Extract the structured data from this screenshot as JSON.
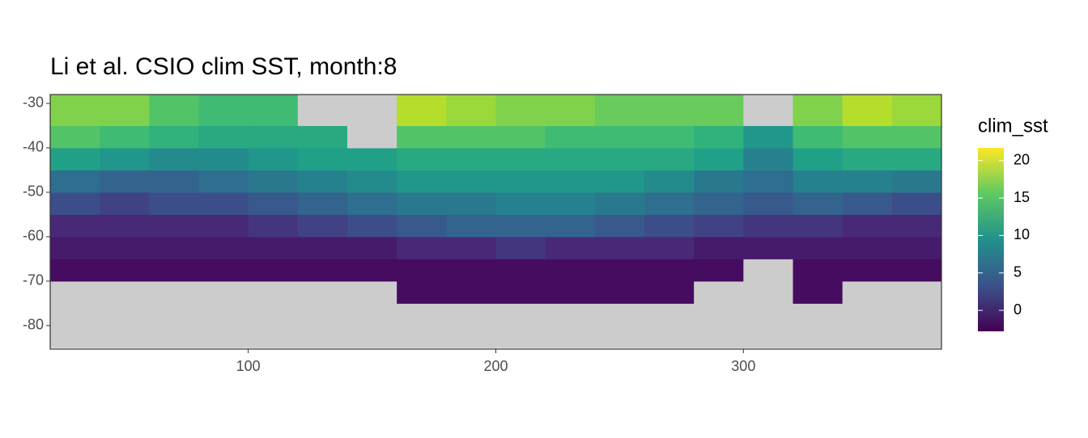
{
  "chart_data": {
    "type": "heatmap",
    "title": "Li et al. CSIO clim SST, month:8",
    "x_bins": [
      20,
      40,
      60,
      80,
      100,
      120,
      140,
      160,
      180,
      200,
      220,
      240,
      260,
      280,
      300,
      320,
      340,
      360,
      380
    ],
    "y_bins": [
      -85,
      -80,
      -75,
      -70,
      -65,
      -60,
      -55,
      -50,
      -45,
      -40,
      -35,
      -28
    ],
    "values": [
      [
        null,
        null,
        null,
        null,
        null,
        null,
        null,
        null,
        null,
        null,
        null,
        null,
        null,
        null,
        null,
        null,
        null,
        null
      ],
      [
        null,
        null,
        null,
        null,
        null,
        null,
        null,
        null,
        null,
        null,
        null,
        null,
        null,
        null,
        null,
        null,
        null,
        null
      ],
      [
        null,
        null,
        null,
        null,
        null,
        null,
        null,
        -2,
        -2,
        -2,
        -2,
        -2,
        -2,
        null,
        null,
        -2,
        null,
        null
      ],
      [
        -2,
        -2,
        -2,
        -2,
        -2,
        -2,
        -2,
        -2,
        -2,
        -2,
        -2,
        -2,
        -2,
        -2,
        null,
        -2,
        -2,
        -2
      ],
      [
        -1,
        -1,
        -1,
        -1,
        -1,
        -1,
        -1,
        0,
        0,
        1,
        0,
        0,
        0,
        -1,
        -1,
        -1,
        -1,
        -1
      ],
      [
        0,
        0,
        0,
        0,
        1,
        2,
        3,
        4,
        5,
        5,
        5,
        4,
        3,
        2,
        1,
        1,
        0,
        0
      ],
      [
        3,
        2,
        3,
        3,
        4,
        5,
        6,
        7,
        7,
        8,
        8,
        7,
        6,
        5,
        4,
        5,
        4,
        3
      ],
      [
        6,
        5,
        5,
        6,
        7,
        8,
        9,
        10,
        10,
        10,
        10,
        10,
        9,
        7,
        6,
        8,
        8,
        7
      ],
      [
        11,
        10,
        9,
        9,
        10,
        11,
        11,
        12,
        12,
        12,
        12,
        12,
        12,
        11,
        8,
        11,
        12,
        12
      ],
      [
        15,
        14,
        13,
        12,
        12,
        12,
        null,
        15,
        15,
        15,
        14,
        14,
        14,
        13,
        10,
        14,
        15,
        15
      ],
      [
        17,
        17,
        15,
        14,
        14,
        null,
        null,
        19,
        18,
        17,
        17,
        16,
        16,
        16,
        null,
        17,
        19,
        18
      ]
    ],
    "colormap": "viridis",
    "land_color": "#cccccc",
    "xlim": [
      20,
      380
    ],
    "ylim": [
      -85.3,
      -28
    ],
    "xticks": [
      100,
      200,
      300
    ],
    "yticks": [
      -30,
      -40,
      -50,
      -60,
      -70,
      -80
    ],
    "grid": true,
    "colorbar": {
      "title": "clim_sst",
      "lim": [
        -2.8,
        21.7
      ],
      "ticks": [
        0,
        5,
        10,
        15,
        20
      ]
    }
  }
}
